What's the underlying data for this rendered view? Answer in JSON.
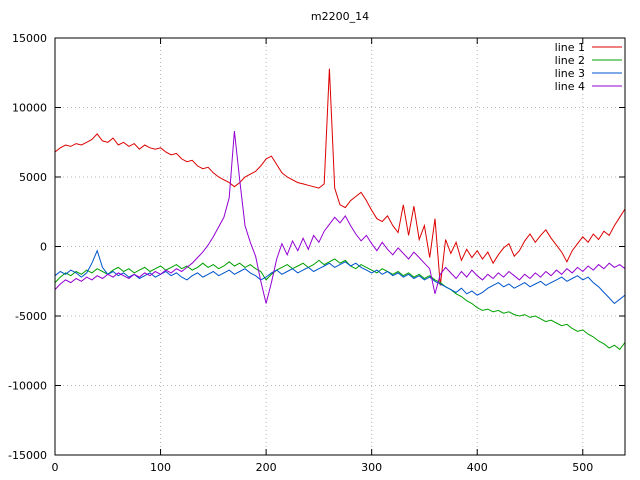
{
  "window": {
    "title": "m2200_14"
  },
  "chart_data": {
    "type": "line",
    "title": "m2200_14",
    "xlabel": "",
    "ylabel": "",
    "xlim": [
      0,
      540
    ],
    "ylim": [
      -15000,
      15000
    ],
    "xticks": [
      0,
      100,
      200,
      300,
      400,
      500
    ],
    "yticks": [
      -15000,
      -10000,
      -5000,
      0,
      5000,
      10000,
      15000
    ],
    "grid": true,
    "grid_color": "#b8b8b8",
    "border_color": "#000000",
    "background": "#ffffff",
    "legend_position": "top-right",
    "x": [
      0,
      5,
      10,
      15,
      20,
      25,
      30,
      35,
      40,
      45,
      50,
      55,
      60,
      65,
      70,
      75,
      80,
      85,
      90,
      95,
      100,
      105,
      110,
      115,
      120,
      125,
      130,
      135,
      140,
      145,
      150,
      155,
      160,
      165,
      170,
      175,
      180,
      185,
      190,
      195,
      200,
      205,
      210,
      215,
      220,
      225,
      230,
      235,
      240,
      245,
      250,
      255,
      260,
      265,
      270,
      275,
      280,
      285,
      290,
      295,
      300,
      305,
      310,
      315,
      320,
      325,
      330,
      335,
      340,
      345,
      350,
      355,
      360,
      365,
      370,
      375,
      380,
      385,
      390,
      395,
      400,
      405,
      410,
      415,
      420,
      425,
      430,
      435,
      440,
      445,
      450,
      455,
      460,
      465,
      470,
      475,
      480,
      485,
      490,
      495,
      500,
      505,
      510,
      515,
      520,
      525,
      530,
      535,
      540
    ],
    "series": [
      {
        "name": "line 1",
        "color": "#dd0000",
        "values": [
          6800,
          7100,
          7300,
          7200,
          7400,
          7300,
          7500,
          7700,
          8100,
          7600,
          7500,
          7800,
          7300,
          7500,
          7200,
          7400,
          7000,
          7300,
          7100,
          7000,
          7100,
          6800,
          6600,
          6700,
          6300,
          6100,
          6200,
          5800,
          5600,
          5700,
          5300,
          5000,
          4800,
          4600,
          4300,
          4600,
          5000,
          5200,
          5400,
          5800,
          6300,
          6500,
          5900,
          5300,
          5000,
          4800,
          4600,
          4500,
          4400,
          4300,
          4200,
          4500,
          12800,
          4200,
          3000,
          2800,
          3300,
          3600,
          3900,
          3300,
          2600,
          2000,
          1800,
          2200,
          1500,
          1000,
          3000,
          800,
          2900,
          500,
          1500,
          -800,
          2000,
          -2800,
          500,
          -500,
          300,
          -1000,
          -200,
          -800,
          -300,
          -900,
          -400,
          -1200,
          -600,
          -100,
          200,
          -700,
          -300,
          400,
          900,
          300,
          800,
          1200,
          600,
          100,
          -400,
          -1100,
          -300,
          200,
          700,
          300,
          900,
          500,
          1100,
          800,
          1500,
          2100,
          2700
        ]
      },
      {
        "name": "line 2",
        "color": "#00a000",
        "values": [
          -2600,
          -2200,
          -1900,
          -2100,
          -1800,
          -2000,
          -1700,
          -1900,
          -1600,
          -1800,
          -2000,
          -1700,
          -1500,
          -1800,
          -1600,
          -1900,
          -1700,
          -1500,
          -1800,
          -1600,
          -1400,
          -1700,
          -1500,
          -1300,
          -1600,
          -1400,
          -1700,
          -1500,
          -1200,
          -1500,
          -1300,
          -1600,
          -1400,
          -1100,
          -1400,
          -1200,
          -1500,
          -1300,
          -1600,
          -1800,
          -2400,
          -2000,
          -1700,
          -1500,
          -1300,
          -1600,
          -1400,
          -1200,
          -1500,
          -1300,
          -1000,
          -1300,
          -1100,
          -900,
          -1200,
          -1000,
          -1400,
          -1600,
          -1300,
          -1500,
          -1700,
          -1900,
          -1600,
          -1800,
          -2000,
          -1800,
          -2100,
          -1900,
          -2200,
          -2000,
          -2300,
          -2100,
          -2400,
          -2600,
          -2900,
          -3100,
          -3400,
          -3600,
          -3900,
          -4100,
          -4400,
          -4600,
          -4500,
          -4700,
          -4600,
          -4800,
          -4700,
          -4900,
          -5000,
          -4900,
          -5100,
          -5000,
          -5200,
          -5400,
          -5300,
          -5500,
          -5700,
          -5600,
          -5900,
          -6100,
          -6000,
          -6300,
          -6500,
          -6800,
          -7000,
          -7300,
          -7100,
          -7400,
          -6900
        ]
      },
      {
        "name": "line 3",
        "color": "#0055cc",
        "values": [
          -2100,
          -1800,
          -2000,
          -1700,
          -1900,
          -2200,
          -1900,
          -1200,
          -300,
          -1500,
          -2000,
          -1800,
          -2100,
          -1900,
          -2200,
          -2000,
          -2300,
          -2100,
          -1900,
          -2200,
          -2000,
          -1800,
          -2100,
          -1900,
          -2200,
          -2400,
          -2100,
          -1900,
          -2200,
          -2000,
          -1800,
          -2100,
          -1900,
          -1700,
          -2000,
          -1800,
          -1600,
          -1900,
          -2100,
          -2400,
          -2200,
          -1900,
          -1700,
          -2000,
          -1800,
          -1600,
          -1900,
          -1700,
          -1500,
          -1800,
          -1600,
          -1400,
          -1200,
          -1500,
          -1300,
          -1100,
          -1400,
          -1200,
          -1500,
          -1700,
          -1900,
          -1700,
          -2000,
          -1800,
          -2100,
          -1900,
          -2200,
          -2000,
          -2300,
          -2100,
          -2400,
          -2200,
          -2500,
          -2700,
          -2900,
          -3100,
          -3300,
          -3000,
          -3400,
          -3200,
          -3500,
          -3300,
          -3000,
          -2800,
          -2600,
          -2900,
          -2700,
          -3000,
          -2800,
          -2600,
          -2900,
          -2700,
          -2500,
          -2800,
          -2600,
          -2400,
          -2200,
          -2500,
          -2300,
          -2100,
          -2400,
          -2200,
          -2600,
          -2900,
          -3300,
          -3700,
          -4100,
          -3800,
          -3500
        ]
      },
      {
        "name": "line 4",
        "color": "#9400d3",
        "values": [
          -3100,
          -2700,
          -2400,
          -2600,
          -2300,
          -2500,
          -2200,
          -2400,
          -2100,
          -2300,
          -2000,
          -2200,
          -1900,
          -2100,
          -2300,
          -2000,
          -2200,
          -1900,
          -2100,
          -1800,
          -2000,
          -1700,
          -1900,
          -1600,
          -1800,
          -1500,
          -1200,
          -800,
          -400,
          100,
          700,
          1400,
          2100,
          3500,
          8300,
          4800,
          1500,
          300,
          -700,
          -2500,
          -4100,
          -2600,
          -900,
          200,
          -600,
          400,
          -300,
          600,
          -200,
          800,
          300,
          1100,
          1600,
          2100,
          1700,
          2200,
          1500,
          900,
          400,
          800,
          200,
          -300,
          300,
          -200,
          -600,
          -100,
          -500,
          -900,
          -400,
          -800,
          -1200,
          -1600,
          -3400,
          -2000,
          -1500,
          -1900,
          -2300,
          -1800,
          -2200,
          -1700,
          -2100,
          -2400,
          -2000,
          -2300,
          -1900,
          -2200,
          -1800,
          -2100,
          -2400,
          -2000,
          -2300,
          -1900,
          -2200,
          -1800,
          -2100,
          -1700,
          -2000,
          -1600,
          -1900,
          -1500,
          -1800,
          -1400,
          -1700,
          -1300,
          -1600,
          -1200,
          -1500,
          -1300,
          -1600
        ]
      }
    ]
  }
}
